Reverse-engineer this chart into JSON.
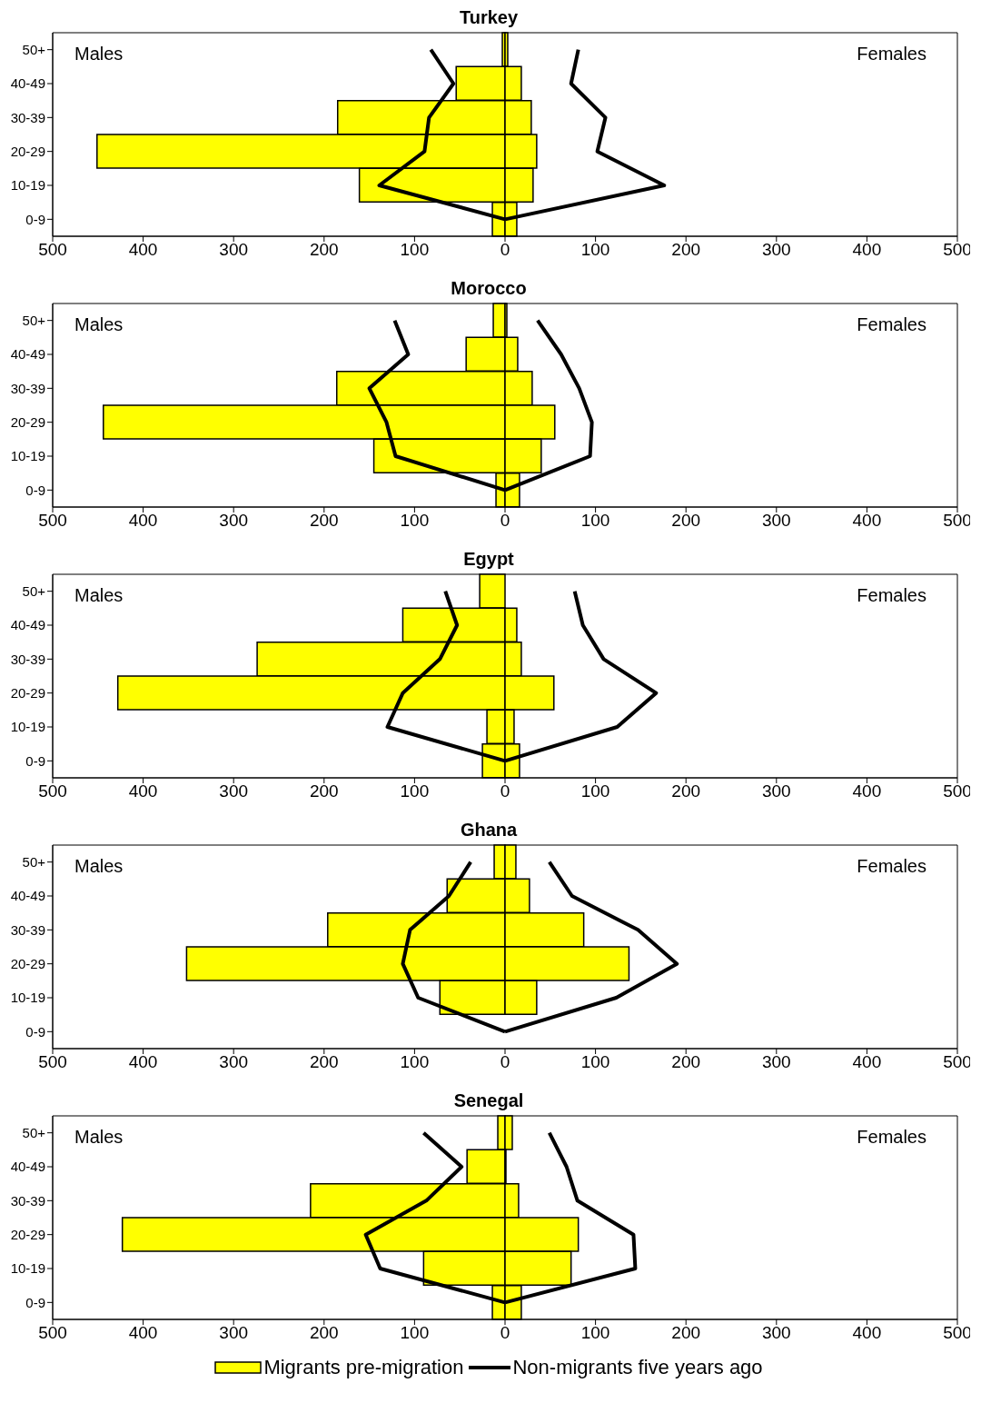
{
  "chart_data": [
    {
      "type": "bar",
      "title": "Turkey",
      "orientation": "horizontal",
      "stacked": true,
      "categories": [
        "50+",
        "40-49",
        "30-39",
        "20-29",
        "10-19",
        "0-9"
      ],
      "annotations": [
        "Males",
        "Females"
      ],
      "xlim": [
        -500,
        500
      ],
      "xticks": [
        {
          "value": -500,
          "label": "500"
        },
        {
          "value": -400,
          "label": "400"
        },
        {
          "value": -300,
          "label": "300"
        },
        {
          "value": -200,
          "label": "200"
        },
        {
          "value": -100,
          "label": "100"
        },
        0,
        100,
        200,
        300,
        400,
        500
      ],
      "legend": false,
      "series": [
        {
          "color": "#ffff00",
          "values": [
            -3,
            -54,
            -185,
            -451,
            -161,
            -14
          ]
        },
        {
          "color": "#ffff00",
          "values": [
            3,
            18,
            29,
            35,
            31,
            13
          ]
        },
        {
          "type": "line",
          "color": "#000000",
          "values": [
            -82,
            -57,
            -84,
            -89,
            -139,
            0
          ]
        },
        {
          "type": "line",
          "color": "#000000",
          "values": [
            81,
            73,
            111,
            102,
            176,
            0
          ]
        }
      ]
    },
    {
      "type": "bar",
      "title": "Morocco",
      "orientation": "horizontal",
      "stacked": true,
      "categories": [
        "50+",
        "40-49",
        "30-39",
        "20-29",
        "10-19",
        "0-9"
      ],
      "annotations": [
        "Males",
        "Females"
      ],
      "xlim": [
        -500,
        500
      ],
      "xticks": [
        {
          "value": -500,
          "label": "500"
        },
        {
          "value": -400,
          "label": "400"
        },
        {
          "value": -300,
          "label": "300"
        },
        {
          "value": -200,
          "label": "200"
        },
        {
          "value": -100,
          "label": "100"
        },
        0,
        100,
        200,
        300,
        400,
        500
      ],
      "legend": false,
      "series": [
        {
          "color": "#ffff00",
          "values": [
            -13,
            -43,
            -186,
            -444,
            -145,
            -10
          ]
        },
        {
          "color": "#ffff00",
          "values": [
            2,
            14,
            30,
            55,
            40,
            16
          ]
        },
        {
          "type": "line",
          "color": "#000000",
          "values": [
            -122,
            -107,
            -150,
            -131,
            -121,
            0
          ]
        },
        {
          "type": "line",
          "color": "#000000",
          "values": [
            36,
            62,
            82,
            96,
            94,
            0
          ]
        }
      ]
    },
    {
      "type": "bar",
      "title": "Egypt",
      "orientation": "horizontal",
      "stacked": true,
      "categories": [
        "50+",
        "40-49",
        "30-39",
        "20-29",
        "10-19",
        "0-9"
      ],
      "annotations": [
        "Males",
        "Females"
      ],
      "xlim": [
        -500,
        500
      ],
      "xticks": [
        {
          "value": -500,
          "label": "500"
        },
        {
          "value": -400,
          "label": "400"
        },
        {
          "value": -300,
          "label": "300"
        },
        {
          "value": -200,
          "label": "200"
        },
        {
          "value": -100,
          "label": "100"
        },
        0,
        100,
        200,
        300,
        400,
        500
      ],
      "legend": false,
      "series": [
        {
          "color": "#ffff00",
          "values": [
            -28,
            -113,
            -274,
            -428,
            -20,
            -25
          ]
        },
        {
          "color": "#ffff00",
          "values": [
            0,
            13,
            18,
            54,
            10,
            16
          ]
        },
        {
          "type": "line",
          "color": "#000000",
          "values": [
            -66,
            -53,
            -72,
            -113,
            -130,
            0
          ]
        },
        {
          "type": "line",
          "color": "#000000",
          "values": [
            77,
            86,
            109,
            167,
            124,
            0
          ]
        }
      ]
    },
    {
      "type": "bar",
      "title": "Ghana",
      "orientation": "horizontal",
      "stacked": true,
      "categories": [
        "50+",
        "40-49",
        "30-39",
        "20-29",
        "10-19",
        "0-9"
      ],
      "annotations": [
        "Males",
        "Females"
      ],
      "xlim": [
        -500,
        500
      ],
      "xticks": [
        {
          "value": -500,
          "label": "500"
        },
        {
          "value": -400,
          "label": "400"
        },
        {
          "value": -300,
          "label": "300"
        },
        {
          "value": -200,
          "label": "200"
        },
        {
          "value": -100,
          "label": "100"
        },
        0,
        100,
        200,
        300,
        400,
        500
      ],
      "legend": false,
      "series": [
        {
          "color": "#ffff00",
          "values": [
            -12,
            -64,
            -196,
            -352,
            -72,
            0
          ]
        },
        {
          "color": "#ffff00",
          "values": [
            12,
            27,
            87,
            137,
            35,
            0
          ]
        },
        {
          "type": "line",
          "color": "#000000",
          "values": [
            -38,
            -62,
            -105,
            -113,
            -96,
            0
          ]
        },
        {
          "type": "line",
          "color": "#000000",
          "values": [
            49,
            74,
            147,
            190,
            123,
            0
          ]
        }
      ]
    },
    {
      "type": "bar",
      "title": "Senegal",
      "orientation": "horizontal",
      "stacked": true,
      "categories": [
        "50+",
        "40-49",
        "30-39",
        "20-29",
        "10-19",
        "0-9"
      ],
      "annotations": [
        "Males",
        "Females"
      ],
      "xlim": [
        -500,
        500
      ],
      "xticks": [
        {
          "value": -500,
          "label": "500"
        },
        {
          "value": -400,
          "label": "400"
        },
        {
          "value": -300,
          "label": "300"
        },
        {
          "value": -200,
          "label": "200"
        },
        {
          "value": -100,
          "label": "100"
        },
        0,
        100,
        200,
        300,
        400,
        500
      ],
      "legend": "bottom",
      "series": [
        {
          "name": "Migrants pre-migration",
          "color": "#ffff00",
          "values": [
            -8,
            -42,
            -215,
            -423,
            -90,
            -14
          ]
        },
        {
          "color": "#ffff00",
          "values": [
            8,
            1,
            15,
            81,
            73,
            18
          ]
        },
        {
          "name": "Non-migrants five years ago",
          "type": "line",
          "color": "#000000",
          "values": [
            -90,
            -48,
            -87,
            -154,
            -138,
            0
          ]
        },
        {
          "type": "line",
          "color": "#000000",
          "values": [
            49,
            68,
            80,
            142,
            144,
            0
          ]
        }
      ]
    }
  ]
}
